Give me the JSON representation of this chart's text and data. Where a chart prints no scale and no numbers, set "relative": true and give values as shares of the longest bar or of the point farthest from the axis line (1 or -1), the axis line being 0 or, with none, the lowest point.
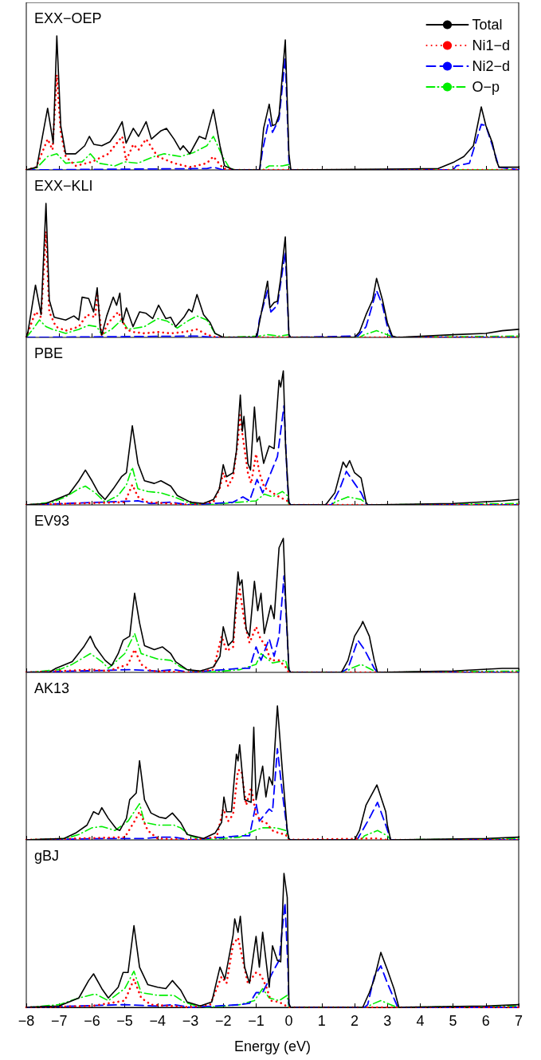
{
  "chart_data": [
    {
      "type": "line",
      "title": "EXX−OEP",
      "relative": true,
      "legend": "top right",
      "tick_labels": false,
      "xlim": [
        -8,
        7
      ],
      "xticks": [
        {
          "value": -8,
          "label": null
        },
        {
          "value": -7,
          "label": null
        },
        {
          "value": -6,
          "label": null
        },
        {
          "value": -5,
          "label": null
        },
        {
          "value": -4,
          "label": null
        },
        {
          "value": -3,
          "label": null
        },
        {
          "value": -2,
          "label": null
        },
        {
          "value": -1,
          "label": null
        },
        {
          "value": 0,
          "label": null
        },
        {
          "value": 1,
          "label": null
        },
        {
          "value": 2,
          "label": null
        },
        {
          "value": 3,
          "label": null
        },
        {
          "value": 4,
          "label": null
        },
        {
          "value": 5,
          "label": null
        },
        {
          "value": 6,
          "label": null
        },
        {
          "value": 7,
          "label": null
        }
      ],
      "series": [
        {
          "name": "Total",
          "color": "#000000",
          "line_style": "solid",
          "x": [
            -8,
            -7.68,
            -7.35,
            -7.18,
            -7.07,
            -6.95,
            -6.8,
            -6.5,
            -6.22,
            -6.08,
            -5.94,
            -5.7,
            -5.45,
            -5.25,
            -5.08,
            -4.96,
            -4.74,
            -4.58,
            -4.35,
            -4.19,
            -3.91,
            -3.73,
            -3.5,
            -3.31,
            -3.22,
            -3.02,
            -2.73,
            -2.54,
            -2.3,
            -2.1,
            -1.96,
            -1.67,
            -0.89,
            -0.77,
            -0.6,
            -0.5,
            -0.4,
            -0.3,
            -0.11,
            0,
            0.06,
            4.55,
            5.04,
            5.33,
            5.62,
            5.86,
            6,
            6.2,
            6.32,
            6.4,
            7
          ],
          "values": [
            0,
            0.02,
            0.46,
            0.2,
            1,
            0.33,
            0.12,
            0.12,
            0.18,
            0.25,
            0.19,
            0.18,
            0.21,
            0.28,
            0.36,
            0.2,
            0.31,
            0.25,
            0.36,
            0.23,
            0.29,
            0.31,
            0.23,
            0.15,
            0.18,
            0.12,
            0.25,
            0.23,
            0.45,
            0.18,
            0.03,
            0,
            0,
            0.31,
            0.49,
            0.33,
            0.34,
            0.41,
            0.97,
            0.12,
            0,
            0.01,
            0.06,
            0.1,
            0.18,
            0.47,
            0.33,
            0.2,
            0.07,
            0.02,
            0.02
          ]
        },
        {
          "name": "Ni1−d",
          "color": "#ff0000",
          "line_style": "dotted",
          "x": [
            -8,
            -7.7,
            -7.35,
            -7.2,
            -7.07,
            -6.95,
            -6.8,
            -6.5,
            -6,
            -5.5,
            -5.08,
            -4.96,
            -4.74,
            -4.58,
            -4.35,
            -4,
            -3.5,
            -3,
            -2.5,
            -2.3,
            -2,
            -1.7,
            7
          ],
          "values": [
            0,
            0.02,
            0.23,
            0.15,
            0.71,
            0.28,
            0.1,
            0.03,
            0.06,
            0.12,
            0.25,
            0.07,
            0.19,
            0.15,
            0.23,
            0.1,
            0.05,
            0.02,
            0.05,
            0.1,
            0.01,
            0,
            0
          ]
        },
        {
          "name": "Ni2−d",
          "color": "#0000ff",
          "line_style": "dashed",
          "x": [
            -8,
            -2.5,
            -2.3,
            -2,
            -0.89,
            -0.8,
            -0.6,
            -0.5,
            -0.3,
            -0.11,
            0,
            0.06,
            5,
            5.1,
            5.5,
            5.86,
            6,
            6.2,
            6.4,
            7
          ],
          "values": [
            0,
            0.01,
            0.02,
            0,
            0,
            0.15,
            0.38,
            0.28,
            0.38,
            0.84,
            0.07,
            0,
            0,
            0.03,
            0.05,
            0.34,
            0.33,
            0.18,
            0.02,
            0
          ]
        },
        {
          "name": "O−p",
          "color": "#00ee00",
          "line_style": "dashdot",
          "x": [
            -8,
            -7.7,
            -7.35,
            -7.07,
            -6.8,
            -6.3,
            -6.05,
            -5.8,
            -5.3,
            -5,
            -4.6,
            -4.1,
            -3.8,
            -3.3,
            -2.9,
            -2.5,
            -2.3,
            -2,
            -1.8,
            -1.6,
            -0.8,
            -0.6,
            -0.2,
            0,
            0.06,
            7
          ],
          "values": [
            0,
            0.01,
            0.1,
            0.12,
            0.05,
            0.06,
            0.12,
            0.05,
            0.03,
            0.06,
            0.05,
            0.1,
            0.12,
            0.1,
            0.13,
            0.18,
            0.25,
            0.09,
            0.01,
            0,
            0,
            0.03,
            0.03,
            0.04,
            0,
            0
          ]
        }
      ]
    },
    {
      "type": "line",
      "title": "EXX−KLI",
      "relative": true,
      "tick_labels": false,
      "xlim": [
        -8,
        7
      ],
      "xticks": [
        {
          "value": -8,
          "label": null
        },
        {
          "value": -7,
          "label": null
        },
        {
          "value": -6,
          "label": null
        },
        {
          "value": -5,
          "label": null
        },
        {
          "value": -4,
          "label": null
        },
        {
          "value": -3,
          "label": null
        },
        {
          "value": -2,
          "label": null
        },
        {
          "value": -1,
          "label": null
        },
        {
          "value": 0,
          "label": null
        },
        {
          "value": 1,
          "label": null
        },
        {
          "value": 2,
          "label": null
        },
        {
          "value": 3,
          "label": null
        },
        {
          "value": 4,
          "label": null
        },
        {
          "value": 5,
          "label": null
        },
        {
          "value": 6,
          "label": null
        },
        {
          "value": 7,
          "label": null
        }
      ],
      "series": [
        {
          "color": "#000000",
          "line_style": "solid",
          "x": [
            -8,
            -7.95,
            -7.72,
            -7.55,
            -7.4,
            -7.3,
            -7.15,
            -6.8,
            -6.55,
            -6.4,
            -6.3,
            -6.1,
            -5.95,
            -5.84,
            -5.75,
            -5.7,
            -5.55,
            -5.35,
            -5.25,
            -5.15,
            -5.07,
            -4.95,
            -4.75,
            -4.55,
            -4.35,
            -4.15,
            -3.97,
            -3.75,
            -3.6,
            -3.45,
            -3.2,
            -3.05,
            -2.95,
            -2.8,
            -2.6,
            -2.4,
            -2.25,
            -2,
            -1.03,
            -0.97,
            -0.85,
            -0.65,
            -0.58,
            -0.45,
            -0.35,
            -0.25,
            -0.11,
            0,
            0.05,
            2,
            2.15,
            2.35,
            2.55,
            2.67,
            2.85,
            3,
            3.15,
            3.3,
            5,
            6,
            6.5,
            7
          ],
          "values": [
            0,
            0.04,
            0.39,
            0.17,
            1,
            0.28,
            0.15,
            0.13,
            0.16,
            0.13,
            0.3,
            0.29,
            0.19,
            0.37,
            0.07,
            0.02,
            0.16,
            0.3,
            0.24,
            0.33,
            0.11,
            0.22,
            0.08,
            0.19,
            0.18,
            0.14,
            0.24,
            0.14,
            0.15,
            0.08,
            0.15,
            0.21,
            0.19,
            0.32,
            0.17,
            0.11,
            0.03,
            0,
            0,
            0.02,
            0.17,
            0.42,
            0.22,
            0.26,
            0.27,
            0.44,
            0.75,
            0.02,
            0,
            0,
            0.04,
            0.17,
            0.28,
            0.44,
            0.28,
            0.11,
            0.01,
            0,
            0.02,
            0.03,
            0.05,
            0.06
          ]
        },
        {
          "color": "#ff0000",
          "line_style": "dotted",
          "x": [
            -8,
            -7.72,
            -7.55,
            -7.4,
            -7.3,
            -7.1,
            -6.8,
            -6.4,
            -6.15,
            -5.9,
            -5.84,
            -5.7,
            -5.5,
            -5.2,
            -4.95,
            -4.75,
            -4.4,
            -4,
            -3.6,
            -3.2,
            -2.8,
            -2.5,
            -2.2,
            7
          ],
          "values": [
            0,
            0.19,
            0.15,
            0.79,
            0.19,
            0.08,
            0.05,
            0.08,
            0.17,
            0.15,
            0.33,
            0.01,
            0.11,
            0.19,
            0.06,
            0.04,
            0.03,
            0.04,
            0.03,
            0.04,
            0.06,
            0.02,
            0,
            0
          ]
        },
        {
          "color": "#0000ff",
          "line_style": "dashed",
          "x": [
            -8,
            -2.8,
            -2.2,
            -0.97,
            -0.9,
            -0.65,
            -0.55,
            -0.35,
            -0.11,
            0,
            0.05,
            2.1,
            2.35,
            2.67,
            2.85,
            3,
            3.15,
            7
          ],
          "values": [
            0,
            0.01,
            0,
            0,
            0.13,
            0.35,
            0.19,
            0.24,
            0.64,
            0.02,
            0,
            0.01,
            0.08,
            0.35,
            0.24,
            0.08,
            0,
            0
          ]
        },
        {
          "color": "#00ee00",
          "line_style": "dashdot",
          "x": [
            -8,
            -7.8,
            -7.6,
            -7.4,
            -7.2,
            -6.8,
            -6.4,
            -6.1,
            -5.85,
            -5.7,
            -5.4,
            -5.1,
            -4.9,
            -4.4,
            -4,
            -3.7,
            -3.4,
            -3.1,
            -2.8,
            -2.5,
            -2.25,
            -2,
            -0.9,
            -0.65,
            -0.3,
            0,
            0.05,
            2.15,
            2.3,
            2.67,
            3,
            3.2,
            7
          ],
          "values": [
            0,
            0.06,
            0.13,
            0.08,
            0.06,
            0.03,
            0.06,
            0.09,
            0.08,
            0.02,
            0.06,
            0.13,
            0.06,
            0.08,
            0.14,
            0.12,
            0.07,
            0.12,
            0.16,
            0.13,
            0.03,
            0,
            0.01,
            0.02,
            0.01,
            0.02,
            0,
            0,
            0.02,
            0.05,
            0.02,
            0,
            0.01
          ]
        }
      ]
    },
    {
      "type": "line",
      "title": "PBE",
      "relative": true,
      "tick_labels": false,
      "xlim": [
        -8,
        7
      ],
      "xticks": [
        {
          "value": -8,
          "label": null
        },
        {
          "value": -7,
          "label": null
        },
        {
          "value": -6,
          "label": null
        },
        {
          "value": -5,
          "label": null
        },
        {
          "value": -4,
          "label": null
        },
        {
          "value": -3,
          "label": null
        },
        {
          "value": -2,
          "label": null
        },
        {
          "value": -1,
          "label": null
        },
        {
          "value": 0,
          "label": null
        },
        {
          "value": 1,
          "label": null
        },
        {
          "value": 2,
          "label": null
        },
        {
          "value": 3,
          "label": null
        },
        {
          "value": 4,
          "label": null
        },
        {
          "value": 5,
          "label": null
        },
        {
          "value": 6,
          "label": null
        },
        {
          "value": 7,
          "label": null
        }
      ],
      "series": [
        {
          "color": "#000000",
          "line_style": "solid",
          "x": [
            -8,
            -7.4,
            -7.1,
            -6.7,
            -6.4,
            -6.2,
            -6,
            -5.8,
            -5.6,
            -5.35,
            -5.1,
            -4.95,
            -4.77,
            -4.6,
            -4.4,
            -4.1,
            -3.9,
            -3.6,
            -3.4,
            -3,
            -2.6,
            -2.3,
            -2.12,
            -2,
            -1.9,
            -1.7,
            -1.6,
            -1.48,
            -1.42,
            -1.37,
            -1.25,
            -1.17,
            -1.05,
            -0.97,
            -0.9,
            -0.77,
            -0.6,
            -0.45,
            -0.3,
            -0.25,
            -0.17,
            -0.1,
            0,
            0.05,
            1.1,
            1.15,
            1.4,
            1.65,
            1.75,
            1.85,
            2,
            2.2,
            2.35,
            2.4,
            5,
            6.5,
            7
          ],
          "values": [
            0,
            0.01,
            0.04,
            0.08,
            0.18,
            0.26,
            0.18,
            0.09,
            0.04,
            0.12,
            0.21,
            0.24,
            0.59,
            0.31,
            0.18,
            0.16,
            0.18,
            0.14,
            0.07,
            0.02,
            0.01,
            0.04,
            0.12,
            0.3,
            0.21,
            0.24,
            0.4,
            0.82,
            0.55,
            0.66,
            0.31,
            0.26,
            0.73,
            0.47,
            0.51,
            0.31,
            0.44,
            0.42,
            0.93,
            0.88,
            1,
            0.43,
            0.02,
            0,
            0,
            0.01,
            0.09,
            0.32,
            0.28,
            0.33,
            0.24,
            0.2,
            0.02,
            0,
            0.01,
            0.03,
            0.04
          ]
        },
        {
          "color": "#ff0000",
          "line_style": "dotted",
          "x": [
            -8,
            -5,
            -4.77,
            -4.6,
            -4.3,
            -3,
            -2.3,
            -2.1,
            -2,
            -1.85,
            -1.7,
            -1.55,
            -1.5,
            -1.4,
            -1.25,
            -1.15,
            -1,
            -0.9,
            -0.75,
            -0.5,
            -0.3,
            -0.05,
            0,
            7
          ],
          "values": [
            0,
            0.02,
            0.15,
            0.06,
            0.02,
            0,
            0.02,
            0.13,
            0.24,
            0.14,
            0.21,
            0.48,
            0.67,
            0.5,
            0.24,
            0.16,
            0.38,
            0.24,
            0.13,
            0.09,
            0.06,
            0.03,
            0,
            0
          ]
        },
        {
          "color": "#0000ff",
          "line_style": "dashed",
          "x": [
            -8,
            -4.6,
            -4.2,
            -3.6,
            -3,
            -1.7,
            -1.4,
            -1.2,
            -0.97,
            -0.8,
            -0.6,
            -0.35,
            -0.15,
            -0.05,
            0,
            0.05,
            1.3,
            1.55,
            1.75,
            2,
            2.2,
            2.35,
            2.4,
            7
          ],
          "values": [
            0,
            0.03,
            0.01,
            0.02,
            0,
            0.02,
            0.06,
            0.03,
            0.19,
            0.09,
            0.21,
            0.36,
            0.74,
            0.19,
            0.02,
            0,
            0,
            0.12,
            0.25,
            0.16,
            0.09,
            0.01,
            0,
            0
          ]
        },
        {
          "color": "#00ee00",
          "line_style": "dashdot",
          "x": [
            -8,
            -7.2,
            -6.8,
            -6.4,
            -6.2,
            -5.9,
            -5.6,
            -5.2,
            -4.95,
            -4.77,
            -4.6,
            -4.3,
            -3.9,
            -3.5,
            -3,
            -2.5,
            -2,
            -1.5,
            -1,
            -0.75,
            -0.5,
            -0.2,
            -0.05,
            0,
            1.3,
            1.4,
            1.8,
            2.2,
            2.4,
            7
          ],
          "values": [
            0,
            0.02,
            0.06,
            0.12,
            0.14,
            0.09,
            0.02,
            0.07,
            0.15,
            0.28,
            0.12,
            0.1,
            0.09,
            0.06,
            0.01,
            0,
            0.01,
            0.02,
            0.03,
            0.08,
            0.06,
            0.1,
            0.07,
            0,
            0,
            0.02,
            0.06,
            0.04,
            0,
            0.01
          ]
        }
      ]
    },
    {
      "type": "line",
      "title": "EV93",
      "relative": true,
      "tick_labels": false,
      "xlim": [
        -8,
        7
      ],
      "xticks": [
        {
          "value": -8,
          "label": null
        },
        {
          "value": -7,
          "label": null
        },
        {
          "value": -6,
          "label": null
        },
        {
          "value": -5,
          "label": null
        },
        {
          "value": -4,
          "label": null
        },
        {
          "value": -3,
          "label": null
        },
        {
          "value": -2,
          "label": null
        },
        {
          "value": -1,
          "label": null
        },
        {
          "value": 0,
          "label": null
        },
        {
          "value": 1,
          "label": null
        },
        {
          "value": 2,
          "label": null
        },
        {
          "value": 3,
          "label": null
        },
        {
          "value": 4,
          "label": null
        },
        {
          "value": 5,
          "label": null
        },
        {
          "value": 6,
          "label": null
        },
        {
          "value": 7,
          "label": null
        }
      ],
      "series": [
        {
          "color": "#000000",
          "line_style": "solid",
          "x": [
            -8,
            -7.3,
            -7.1,
            -6.6,
            -6.25,
            -6.05,
            -5.9,
            -5.6,
            -5.4,
            -5.2,
            -5.05,
            -4.85,
            -4.7,
            -4.55,
            -4.4,
            -4.1,
            -3.85,
            -3.6,
            -3.45,
            -3.1,
            -2.7,
            -2.3,
            -2.1,
            -2,
            -1.85,
            -1.7,
            -1.55,
            -1.5,
            -1.43,
            -1.3,
            -1.2,
            -1.05,
            -0.95,
            -0.85,
            -0.75,
            -0.55,
            -0.45,
            -0.3,
            -0.17,
            -0.1,
            0,
            0.05,
            1.6,
            1.8,
            2,
            2.2,
            2.25,
            2.45,
            2.6,
            2.7,
            5,
            6.5,
            7
          ],
          "values": [
            0,
            0,
            0.03,
            0.08,
            0.19,
            0.27,
            0.19,
            0.09,
            0.05,
            0.14,
            0.24,
            0.27,
            0.59,
            0.37,
            0.2,
            0.17,
            0.19,
            0.14,
            0.08,
            0.02,
            0.01,
            0.04,
            0.12,
            0.34,
            0.2,
            0.24,
            0.75,
            0.65,
            0.69,
            0.32,
            0.27,
            0.68,
            0.46,
            0.59,
            0.29,
            0.5,
            0.4,
            0.93,
            1,
            0.56,
            0.02,
            0,
            0,
            0.09,
            0.27,
            0.35,
            0.38,
            0.27,
            0.09,
            0,
            0.01,
            0.03,
            0.03
          ]
        },
        {
          "color": "#ff0000",
          "line_style": "dotted",
          "x": [
            -8,
            -6,
            -5.5,
            -4.9,
            -4.7,
            -4.5,
            -4.2,
            -3,
            -2.3,
            -2.05,
            -1.9,
            -1.7,
            -1.6,
            -1.5,
            -1.35,
            -1.2,
            -1,
            -0.85,
            -0.75,
            -0.55,
            -0.3,
            -0.1,
            0,
            7
          ],
          "values": [
            0,
            0.02,
            0.01,
            0.06,
            0.17,
            0.06,
            0.01,
            0,
            0.02,
            0.27,
            0.16,
            0.19,
            0.51,
            0.62,
            0.37,
            0.22,
            0.34,
            0.24,
            0.22,
            0.09,
            0.09,
            0.04,
            0,
            0
          ]
        },
        {
          "color": "#0000ff",
          "line_style": "dashed",
          "x": [
            -8,
            -4.8,
            -4,
            -3.5,
            -3,
            -1.5,
            -1.2,
            -1,
            -0.85,
            -0.6,
            -0.45,
            -0.3,
            -0.15,
            -0.05,
            0,
            0.05,
            1.6,
            1.8,
            2.1,
            2.3,
            2.6,
            2.7,
            7
          ],
          "values": [
            0,
            0.02,
            0.01,
            0.02,
            0,
            0.03,
            0.03,
            0.19,
            0.09,
            0.25,
            0.12,
            0.27,
            0.72,
            0.27,
            0.02,
            0,
            0,
            0.03,
            0.24,
            0.17,
            0.03,
            0,
            0
          ]
        },
        {
          "color": "#00ee00",
          "line_style": "dashdot",
          "x": [
            -8,
            -7,
            -6.6,
            -6.05,
            -5.7,
            -5.5,
            -5,
            -4.7,
            -4.5,
            -4,
            -3.6,
            -3.3,
            -3,
            -2.5,
            -1.5,
            -1,
            -0.85,
            -0.5,
            -0.1,
            0,
            1.7,
            1.9,
            2.2,
            2.6,
            2.7,
            7
          ],
          "values": [
            0,
            0.02,
            0.06,
            0.14,
            0.08,
            0.03,
            0.14,
            0.29,
            0.14,
            0.1,
            0.09,
            0.04,
            0.01,
            0,
            0.02,
            0.06,
            0.14,
            0.07,
            0.09,
            0,
            0,
            0.03,
            0.06,
            0.01,
            0,
            0.01
          ]
        }
      ]
    },
    {
      "type": "line",
      "title": "AK13",
      "relative": true,
      "tick_labels": false,
      "xlim": [
        -8,
        7
      ],
      "xticks": [
        {
          "value": -8,
          "label": null
        },
        {
          "value": -7,
          "label": null
        },
        {
          "value": -6,
          "label": null
        },
        {
          "value": -5,
          "label": null
        },
        {
          "value": -4,
          "label": null
        },
        {
          "value": -3,
          "label": null
        },
        {
          "value": -2,
          "label": null
        },
        {
          "value": -1,
          "label": null
        },
        {
          "value": 0,
          "label": null
        },
        {
          "value": 1,
          "label": null
        },
        {
          "value": 2,
          "label": null
        },
        {
          "value": 3,
          "label": null
        },
        {
          "value": 4,
          "label": null
        },
        {
          "value": 5,
          "label": null
        },
        {
          "value": 6,
          "label": null
        },
        {
          "value": 7,
          "label": null
        }
      ],
      "series": [
        {
          "color": "#000000",
          "line_style": "solid",
          "x": [
            -8,
            -6.85,
            -6.5,
            -6.15,
            -5.95,
            -5.8,
            -5.7,
            -5.5,
            -5.25,
            -5.15,
            -4.95,
            -4.85,
            -4.65,
            -4.55,
            -4.4,
            -4.2,
            -3.95,
            -3.75,
            -3.55,
            -3.3,
            -3.1,
            -2.6,
            -2.25,
            -2.05,
            -1.98,
            -1.9,
            -1.75,
            -1.6,
            -1.55,
            -1.5,
            -1.35,
            -1.15,
            -1.07,
            -1,
            -0.8,
            -0.7,
            -0.6,
            -0.5,
            -0.35,
            -0.2,
            -0.05,
            0,
            0.05,
            2,
            2.15,
            2.35,
            2.68,
            2.95,
            3,
            3.1,
            6,
            7
          ],
          "values": [
            0,
            0.01,
            0.05,
            0.11,
            0.21,
            0.19,
            0.24,
            0.16,
            0.08,
            0.07,
            0.16,
            0.3,
            0.35,
            0.59,
            0.3,
            0.2,
            0.17,
            0.16,
            0.2,
            0.13,
            0.04,
            0.01,
            0.05,
            0.13,
            0.32,
            0.21,
            0.21,
            0.64,
            0.59,
            0.71,
            0.3,
            0.28,
            0.84,
            0.3,
            0.55,
            0.32,
            0.47,
            0.41,
            1,
            0.52,
            0.07,
            0.01,
            0,
            0,
            0.07,
            0.26,
            0.41,
            0.21,
            0.11,
            0,
            0.01,
            0.02
          ]
        },
        {
          "color": "#ff0000",
          "line_style": "dotted",
          "x": [
            -8,
            -5,
            -4.7,
            -4.55,
            -4.3,
            -4,
            -3,
            -2.2,
            -2,
            -1.85,
            -1.7,
            -1.55,
            -1.45,
            -1.3,
            -1.15,
            -1,
            -0.85,
            -0.7,
            -0.5,
            -0.3,
            -0.1,
            0,
            2.5,
            2.7,
            3,
            7
          ],
          "values": [
            0,
            0.02,
            0.14,
            0.21,
            0.07,
            0.01,
            0,
            0.02,
            0.23,
            0.14,
            0.19,
            0.52,
            0.52,
            0.26,
            0.39,
            0.19,
            0.14,
            0.13,
            0.07,
            0.05,
            0.04,
            0,
            0.01,
            0.01,
            0,
            0
          ]
        },
        {
          "color": "#0000ff",
          "line_style": "dashed",
          "x": [
            -8,
            -5.5,
            -4.9,
            -4.4,
            -4,
            -3.5,
            -3,
            -1.5,
            -1.2,
            -1,
            -0.9,
            -0.6,
            -0.5,
            -0.35,
            -0.2,
            -0.05,
            0,
            2,
            2.1,
            2.45,
            2.7,
            2.95,
            3.1,
            7
          ],
          "values": [
            0,
            0.01,
            0.01,
            0.01,
            0.02,
            0.02,
            0,
            0.03,
            0.03,
            0.27,
            0.14,
            0.23,
            0.21,
            0.68,
            0.35,
            0.07,
            0,
            0,
            0.01,
            0.16,
            0.28,
            0.11,
            0,
            0
          ]
        },
        {
          "color": "#00ee00",
          "line_style": "dashdot",
          "x": [
            -8,
            -6.8,
            -6.4,
            -6,
            -5.7,
            -5.3,
            -4.9,
            -4.55,
            -4.4,
            -4,
            -3.5,
            -3.3,
            -3,
            -2.6,
            -1.5,
            -1.05,
            -0.8,
            -0.4,
            -0.1,
            0,
            2.2,
            2.3,
            2.7,
            3,
            3.1,
            7
          ],
          "values": [
            0,
            0.01,
            0.04,
            0.09,
            0.1,
            0.07,
            0.14,
            0.27,
            0.13,
            0.11,
            0.11,
            0.09,
            0.03,
            0,
            0.02,
            0.07,
            0.09,
            0.09,
            0.07,
            0,
            0,
            0.03,
            0.07,
            0.03,
            0,
            0.01
          ]
        }
      ]
    },
    {
      "type": "line",
      "title": "gBJ",
      "xlabel": "Energy (eV)",
      "relative": true,
      "tick_labels": "x",
      "xlim": [
        -8,
        7
      ],
      "xticks": [
        {
          "value": -8,
          "label": "−8"
        },
        {
          "value": -7,
          "label": "−7"
        },
        {
          "value": -6,
          "label": "−6"
        },
        {
          "value": -5,
          "label": "−5"
        },
        {
          "value": -4,
          "label": "−4"
        },
        {
          "value": -3,
          "label": "−3"
        },
        {
          "value": -2,
          "label": "−2"
        },
        {
          "value": -1,
          "label": "−1"
        },
        0,
        1,
        2,
        3,
        4,
        5,
        6,
        7
      ],
      "series": [
        {
          "color": "#000000",
          "line_style": "solid",
          "x": [
            -8,
            -7,
            -6.4,
            -6.1,
            -5.95,
            -5.7,
            -5.5,
            -5.2,
            -5.05,
            -4.9,
            -4.72,
            -4.55,
            -4.3,
            -4,
            -3.75,
            -3.55,
            -3.3,
            -3.1,
            -2.7,
            -2.35,
            -2.1,
            -1.95,
            -1.7,
            -1.65,
            -1.55,
            -1.48,
            -1.35,
            -1.2,
            -1,
            -0.9,
            -0.8,
            -0.6,
            -0.5,
            -0.35,
            -0.25,
            -0.15,
            -0.05,
            0,
            0.05,
            2.25,
            2.45,
            2.6,
            2.8,
            3,
            3.2,
            3.35,
            6,
            7
          ],
          "values": [
            0,
            0.01,
            0.07,
            0.2,
            0.25,
            0.14,
            0.07,
            0.15,
            0.26,
            0.26,
            0.61,
            0.3,
            0.17,
            0.15,
            0.14,
            0.2,
            0.13,
            0.04,
            0.01,
            0.04,
            0.3,
            0.21,
            0.54,
            0.66,
            0.56,
            0.68,
            0.3,
            0.18,
            0.53,
            0.3,
            0.56,
            0.15,
            0.46,
            0.35,
            0.34,
            1,
            0.82,
            0.03,
            0,
            0,
            0.11,
            0.21,
            0.41,
            0.28,
            0.14,
            0,
            0.01,
            0.02
          ]
        },
        {
          "color": "#ff0000",
          "line_style": "dotted",
          "x": [
            -8,
            -6,
            -5,
            -4.72,
            -4.5,
            -4.2,
            -3,
            -2.4,
            -2.05,
            -1.9,
            -1.7,
            -1.55,
            -1.4,
            -1.25,
            -1,
            -0.85,
            -0.7,
            -0.55,
            -0.3,
            0,
            7
          ],
          "values": [
            0,
            0.01,
            0.05,
            0.21,
            0.07,
            0.02,
            0,
            0.02,
            0.23,
            0.18,
            0.47,
            0.52,
            0.35,
            0.18,
            0.26,
            0.24,
            0.16,
            0.05,
            0.04,
            0,
            0
          ]
        },
        {
          "color": "#0000ff",
          "line_style": "dashed",
          "x": [
            -8,
            -5,
            -4,
            -3.5,
            -3,
            -1.5,
            -1.2,
            -1,
            -0.8,
            -0.5,
            -0.3,
            -0.12,
            -0.03,
            0,
            0.05,
            2.3,
            2.4,
            2.6,
            2.8,
            3,
            3.3,
            3.4,
            7
          ],
          "values": [
            0,
            0.02,
            0.01,
            0.02,
            0,
            0.02,
            0.03,
            0.11,
            0.11,
            0.26,
            0.35,
            0.78,
            0.3,
            0.02,
            0,
            0,
            0.02,
            0.23,
            0.31,
            0.18,
            0.01,
            0,
            0
          ]
        },
        {
          "color": "#00ee00",
          "line_style": "dashdot",
          "x": [
            -8,
            -7,
            -6.4,
            -5.9,
            -5.5,
            -5,
            -4.72,
            -4.5,
            -4,
            -3.5,
            -3.2,
            -2.8,
            -2.5,
            -1.5,
            -1.05,
            -0.8,
            -0.6,
            -0.3,
            -0.05,
            0,
            2.4,
            2.5,
            2.8,
            3.1,
            3.3,
            7
          ],
          "values": [
            0,
            0.02,
            0.07,
            0.1,
            0.05,
            0.14,
            0.27,
            0.11,
            0.09,
            0.09,
            0.04,
            0.01,
            0,
            0.02,
            0.05,
            0.14,
            0.07,
            0.05,
            0.09,
            0,
            0,
            0.02,
            0.05,
            0.02,
            0,
            0.01
          ]
        }
      ]
    }
  ]
}
